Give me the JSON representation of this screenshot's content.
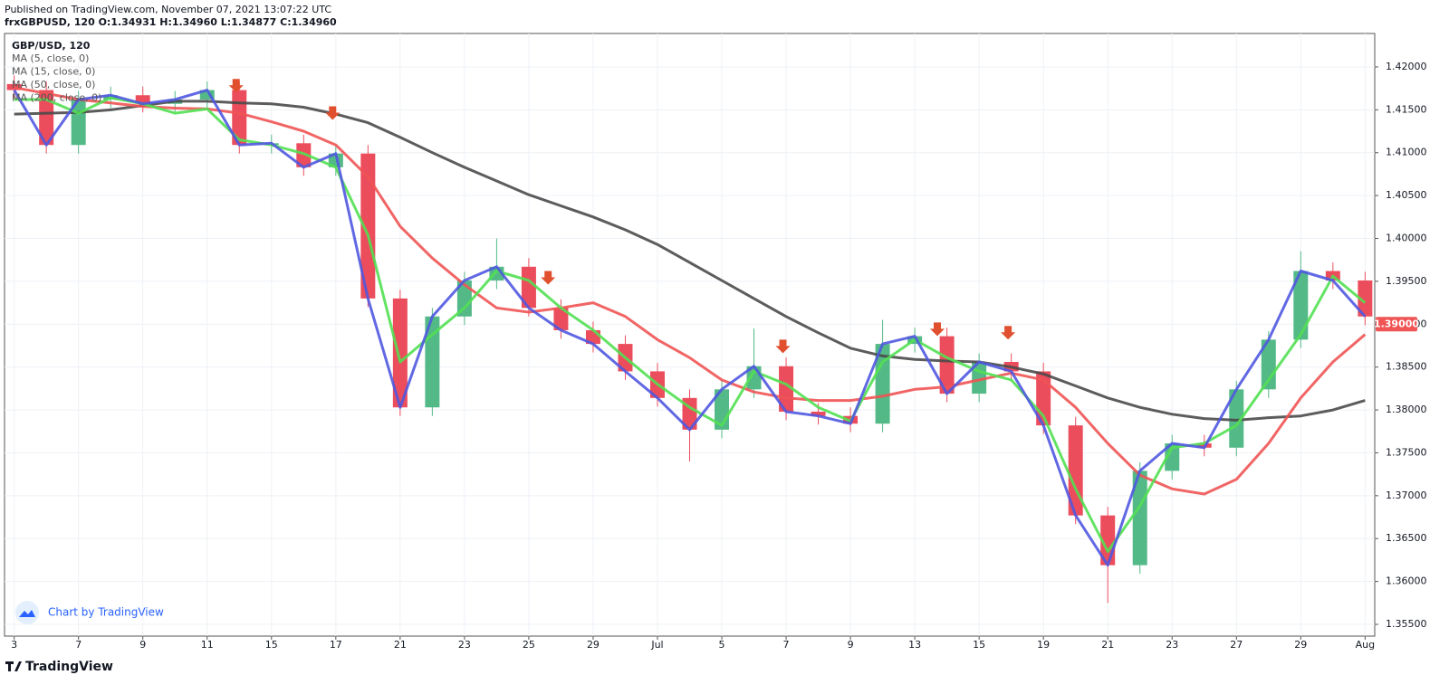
{
  "published": "Published on TradingView.com, November 07, 2021 13:07:22 UTC",
  "ohlc_line": "frxGBPUSD, 120 O:1.34931 H:1.34960 L:1.34877 C:1.34960",
  "attribution": "Chart by TradingView",
  "brand": "TradingView",
  "chart_data": {
    "type": "candlestick",
    "title": "GBP/USD, 120",
    "x": [
      0,
      1,
      2,
      3,
      4,
      5,
      6,
      7,
      8,
      9,
      10,
      11,
      12,
      13,
      14,
      15,
      16,
      17,
      18,
      19,
      20,
      21,
      22,
      23,
      24,
      25,
      26,
      27,
      28,
      29,
      30,
      31,
      32,
      33,
      34,
      35,
      36,
      37,
      38,
      39,
      40,
      41,
      42
    ],
    "open": [
      1.418,
      1.4173,
      1.4109,
      1.4162,
      1.4167,
      1.4157,
      1.4162,
      1.4173,
      1.4109,
      1.4111,
      1.4083,
      1.4099,
      1.393,
      1.3803,
      1.3909,
      1.3951,
      1.3967,
      1.3919,
      1.3893,
      1.3877,
      1.3845,
      1.3814,
      1.3777,
      1.3824,
      1.3851,
      1.3798,
      1.3793,
      1.3784,
      1.3877,
      1.3886,
      1.3819,
      1.3856,
      1.3845,
      1.3782,
      1.3677,
      1.3619,
      1.3729,
      1.3761,
      1.3756,
      1.3824,
      1.3882,
      1.3962,
      1.3951
    ],
    "high": [
      1.419,
      1.4183,
      1.4172,
      1.4177,
      1.4177,
      1.4172,
      1.4183,
      1.4183,
      1.4121,
      1.4121,
      1.4109,
      1.4109,
      1.394,
      1.3919,
      1.3961,
      1.4,
      1.3977,
      1.3929,
      1.3903,
      1.3887,
      1.3855,
      1.3824,
      1.3834,
      1.3895,
      1.3861,
      1.3808,
      1.3803,
      1.3905,
      1.3896,
      1.3896,
      1.3866,
      1.3866,
      1.3855,
      1.3792,
      1.3687,
      1.3739,
      1.3771,
      1.3771,
      1.3834,
      1.3892,
      1.3985,
      1.3972,
      1.3961
    ],
    "low": [
      1.4163,
      1.4099,
      1.4099,
      1.4152,
      1.4147,
      1.4147,
      1.4152,
      1.4099,
      1.4099,
      1.4073,
      1.4073,
      1.392,
      1.3793,
      1.3793,
      1.3899,
      1.3941,
      1.3909,
      1.3883,
      1.3867,
      1.3835,
      1.3804,
      1.374,
      1.3767,
      1.3814,
      1.3788,
      1.3783,
      1.3774,
      1.3774,
      1.3867,
      1.3809,
      1.3809,
      1.3835,
      1.3772,
      1.3667,
      1.3575,
      1.3609,
      1.3719,
      1.3746,
      1.3746,
      1.3814,
      1.3872,
      1.3941,
      1.3899
    ],
    "close": [
      1.4173,
      1.4109,
      1.4162,
      1.4167,
      1.4157,
      1.4162,
      1.4173,
      1.4109,
      1.4111,
      1.4083,
      1.4099,
      1.393,
      1.3803,
      1.3909,
      1.3951,
      1.3967,
      1.3919,
      1.3893,
      1.3877,
      1.3845,
      1.3814,
      1.3777,
      1.3824,
      1.3851,
      1.3798,
      1.3793,
      1.3784,
      1.3877,
      1.3886,
      1.3819,
      1.3856,
      1.3845,
      1.3782,
      1.3677,
      1.3619,
      1.3729,
      1.3761,
      1.3756,
      1.3824,
      1.3882,
      1.3962,
      1.3951,
      1.3909
    ],
    "up_color": "#53b987",
    "down_color": "#eb4d5c",
    "series": [
      {
        "name": "MA (5, close, 0)",
        "color": "#5058e0",
        "values": [
          1.4173,
          1.4109,
          1.4162,
          1.4167,
          1.4157,
          1.4162,
          1.4173,
          1.4109,
          1.4111,
          1.4083,
          1.4099,
          1.393,
          1.3803,
          1.3909,
          1.3951,
          1.3967,
          1.3919,
          1.3893,
          1.3877,
          1.3845,
          1.3814,
          1.3777,
          1.3824,
          1.3851,
          1.3798,
          1.3793,
          1.3784,
          1.3877,
          1.3886,
          1.3819,
          1.3856,
          1.3845,
          1.3782,
          1.3677,
          1.3619,
          1.3729,
          1.3761,
          1.3756,
          1.3824,
          1.3882,
          1.3962,
          1.3951,
          1.3909
        ]
      },
      {
        "name": "MA (15, close, 0)",
        "color": "#52e052",
        "values": [
          1.4162,
          1.4162,
          1.4146,
          1.4164,
          1.4157,
          1.4146,
          1.4151,
          1.4115,
          1.4109,
          1.4099,
          1.4083,
          1.4004,
          1.3856,
          1.3888,
          1.3919,
          1.3962,
          1.3951,
          1.3919,
          1.3893,
          1.3861,
          1.383,
          1.3803,
          1.3782,
          1.3845,
          1.383,
          1.3803,
          1.3787,
          1.3856,
          1.3882,
          1.3861,
          1.3845,
          1.3835,
          1.3793,
          1.3708,
          1.3635,
          1.3688,
          1.3756,
          1.3761,
          1.3782,
          1.3835,
          1.3888,
          1.3956,
          1.3925
        ]
      },
      {
        "name": "MA (50, close, 0)",
        "color": "#f05454",
        "values": [
          1.4176,
          1.4169,
          1.4162,
          1.4158,
          1.4154,
          1.4152,
          1.4151,
          1.4146,
          1.4136,
          1.4125,
          1.4109,
          1.4072,
          1.4014,
          1.3977,
          1.3946,
          1.3919,
          1.3914,
          1.3919,
          1.3925,
          1.3909,
          1.3882,
          1.3861,
          1.3835,
          1.3821,
          1.3814,
          1.3811,
          1.3811,
          1.3816,
          1.3824,
          1.3827,
          1.3835,
          1.3843,
          1.3835,
          1.3803,
          1.3761,
          1.3724,
          1.3708,
          1.3702,
          1.3719,
          1.3761,
          1.3814,
          1.3856,
          1.3888
        ]
      },
      {
        "name": "MA (200, close, 0)",
        "color": "#4a4a4a",
        "values": [
          1.4145,
          1.4146,
          1.4147,
          1.415,
          1.4155,
          1.416,
          1.416,
          1.4158,
          1.4157,
          1.4153,
          1.4145,
          1.4135,
          1.4118,
          1.41,
          1.4083,
          1.4067,
          1.4051,
          1.4038,
          1.4025,
          1.401,
          1.3993,
          1.3972,
          1.3951,
          1.393,
          1.3909,
          1.389,
          1.3872,
          1.3863,
          1.3859,
          1.3857,
          1.3856,
          1.385,
          1.3842,
          1.3828,
          1.3814,
          1.3803,
          1.3795,
          1.379,
          1.3788,
          1.3791,
          1.3793,
          1.38,
          1.3811
        ]
      }
    ],
    "signals": {
      "color": "#e0502e",
      "x": [
        6.9,
        9.9,
        16.6,
        23.9,
        28.7,
        30.9
      ],
      "y": [
        1.4186,
        1.4154,
        1.3962,
        1.3882,
        1.3902,
        1.3898
      ]
    },
    "last_price": {
      "value": 1.39,
      "label": "1.39000"
    },
    "last_price_color": "#f05454",
    "xlim": [
      -0.3,
      42.3
    ],
    "ylim": [
      1.35363,
      1.4239
    ],
    "xticks": [
      {
        "value": 0,
        "label": "3"
      },
      {
        "value": 2,
        "label": "7"
      },
      {
        "value": 4,
        "label": "9"
      },
      {
        "value": 6,
        "label": "11"
      },
      {
        "value": 8,
        "label": "15"
      },
      {
        "value": 10,
        "label": "17"
      },
      {
        "value": 12,
        "label": "21"
      },
      {
        "value": 14,
        "label": "23"
      },
      {
        "value": 16,
        "label": "25"
      },
      {
        "value": 18,
        "label": "29"
      },
      {
        "value": 20,
        "label": "Jul"
      },
      {
        "value": 22,
        "label": "5"
      },
      {
        "value": 24,
        "label": "7"
      },
      {
        "value": 26,
        "label": "9"
      },
      {
        "value": 28,
        "label": "13"
      },
      {
        "value": 30,
        "label": "15"
      },
      {
        "value": 32,
        "label": "19"
      },
      {
        "value": 34,
        "label": "21"
      },
      {
        "value": 36,
        "label": "23"
      },
      {
        "value": 38,
        "label": "27"
      },
      {
        "value": 40,
        "label": "29"
      },
      {
        "value": 42,
        "label": "Aug"
      }
    ],
    "yticks": [
      {
        "value": 1.355,
        "label": "1.35500"
      },
      {
        "value": 1.36,
        "label": "1.36000"
      },
      {
        "value": 1.365,
        "label": "1.36500"
      },
      {
        "value": 1.37,
        "label": "1.37000"
      },
      {
        "value": 1.375,
        "label": "1.37500"
      },
      {
        "value": 1.38,
        "label": "1.38000"
      },
      {
        "value": 1.385,
        "label": "1.38500"
      },
      {
        "value": 1.39,
        "label": "1.39000"
      },
      {
        "value": 1.395,
        "label": "1.39500"
      },
      {
        "value": 1.4,
        "label": "1.40000"
      },
      {
        "value": 1.405,
        "label": "1.40500"
      },
      {
        "value": 1.41,
        "label": "1.41000"
      },
      {
        "value": 1.415,
        "label": "1.41500"
      },
      {
        "value": 1.42,
        "label": "1.42000"
      }
    ],
    "grid": true
  }
}
